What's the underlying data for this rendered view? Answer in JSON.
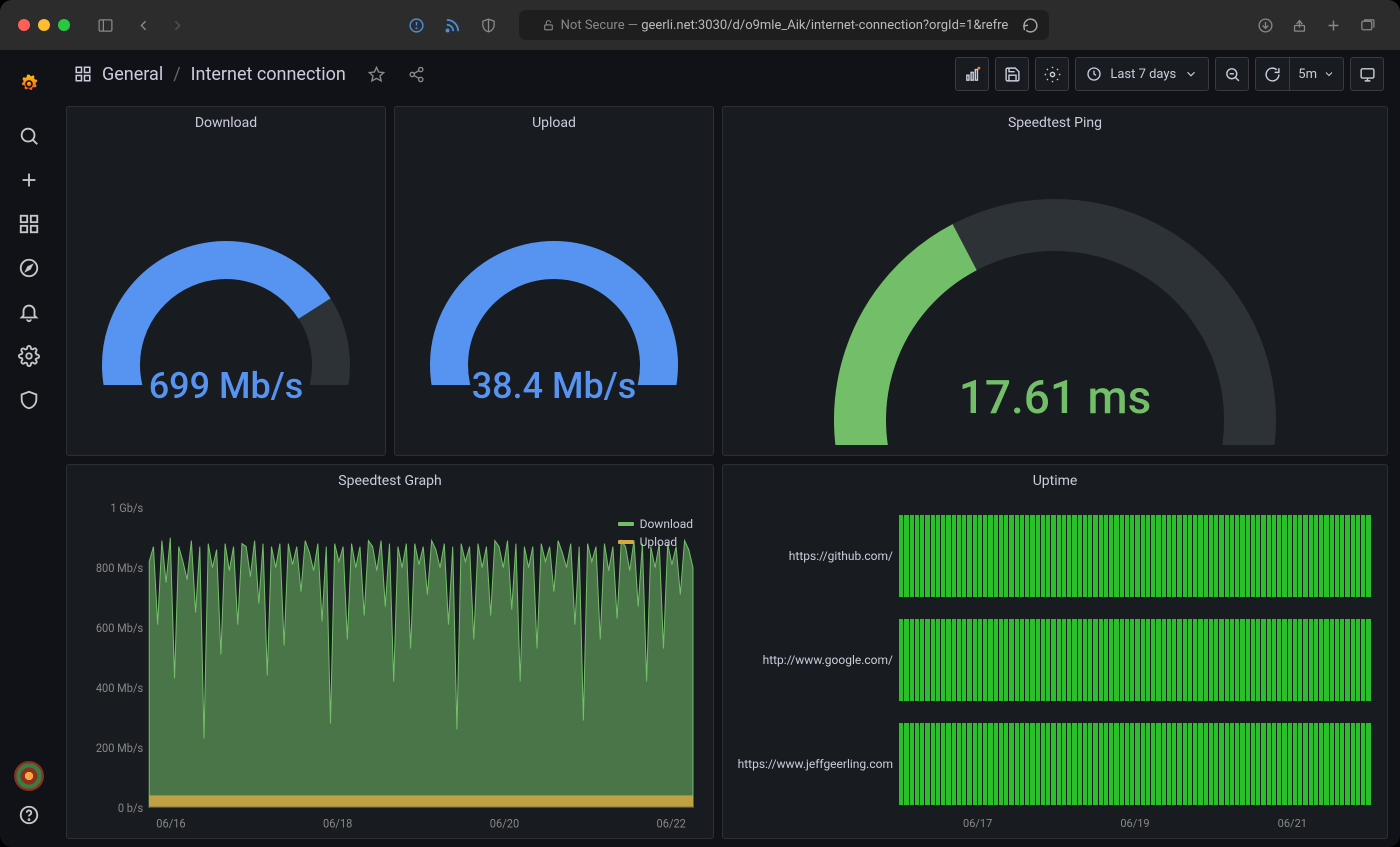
{
  "browser": {
    "url_prefix": "Not Secure — ",
    "url": "geerli.net:3030/d/o9mle_Aik/internet-connection?orgId=1&refre"
  },
  "header": {
    "breadcrumb_root": "General",
    "breadcrumb_sep": "/",
    "breadcrumb_page": "Internet connection",
    "time_range": "Last 7 days",
    "refresh_interval": "5m"
  },
  "panels": {
    "download": {
      "title": "Download",
      "value": "699 Mb/s",
      "pct": 0.75,
      "color": "#5794f2",
      "track_color": "#2c3235",
      "value_color": "#5794f2",
      "fontsize": 36
    },
    "upload": {
      "title": "Upload",
      "value": "38.4 Mb/s",
      "pct": 0.95,
      "color": "#5794f2",
      "track_color": "#2c3235",
      "value_color": "#5794f2",
      "fontsize": 36
    },
    "ping": {
      "title": "Speedtest Ping",
      "value": "17.61 ms",
      "pct": 0.38,
      "color": "#73bf69",
      "track_color": "#2c3235",
      "value_color": "#73bf69",
      "fontsize": 46
    },
    "speedgraph": {
      "title": "Speedtest Graph",
      "legend": {
        "download": "Download",
        "upload": "Upload"
      },
      "colors": {
        "download": "#73bf69",
        "upload": "#d4a843"
      },
      "y_labels": [
        "0 b/s",
        "200 Mb/s",
        "400 Mb/s",
        "600 Mb/s",
        "800 Mb/s",
        "1 Gb/s"
      ],
      "y_max_mbps": 1000,
      "x_labels": [
        "06/16",
        "06/18",
        "06/20",
        "06/22"
      ],
      "download_mbps": [
        820,
        870,
        610,
        890,
        750,
        900,
        430,
        870,
        820,
        760,
        890,
        650,
        870,
        230,
        880,
        800,
        860,
        510,
        880,
        790,
        870,
        610,
        880,
        870,
        770,
        890,
        680,
        880,
        440,
        870,
        800,
        880,
        540,
        880,
        810,
        870,
        720,
        890,
        850,
        790,
        880,
        620,
        870,
        280,
        880,
        820,
        870,
        560,
        880,
        800,
        870,
        640,
        890,
        870,
        790,
        890,
        670,
        880,
        420,
        870,
        800,
        880,
        530,
        880,
        810,
        870,
        710,
        890,
        860,
        800,
        880,
        610,
        870,
        260,
        880,
        820,
        870,
        560,
        880,
        800,
        870,
        640,
        890,
        870,
        800,
        890,
        660,
        880,
        420,
        870,
        800,
        870,
        530,
        880,
        820,
        870,
        720,
        890,
        850,
        800,
        880,
        610,
        870,
        290,
        880,
        820,
        870,
        560,
        880,
        790,
        870,
        630,
        890,
        870,
        790,
        890,
        670,
        880,
        420,
        870,
        800,
        880,
        530,
        880,
        810,
        870,
        710,
        890,
        860,
        800
      ],
      "upload_mbps": 40
    },
    "uptime": {
      "title": "Uptime",
      "rows": [
        "https://github.com/",
        "http://www.google.com/",
        "https://www.jeffgeerling.com"
      ],
      "x_labels": [
        "06/17",
        "06/19",
        "06/21"
      ],
      "bar_count": 90,
      "bar_color": "#2dbe2d"
    }
  },
  "colors": {
    "panel_bg": "#181b1f",
    "body_bg": "#111217",
    "border": "#2c3035",
    "text": "#ccccdc",
    "muted": "#888"
  }
}
